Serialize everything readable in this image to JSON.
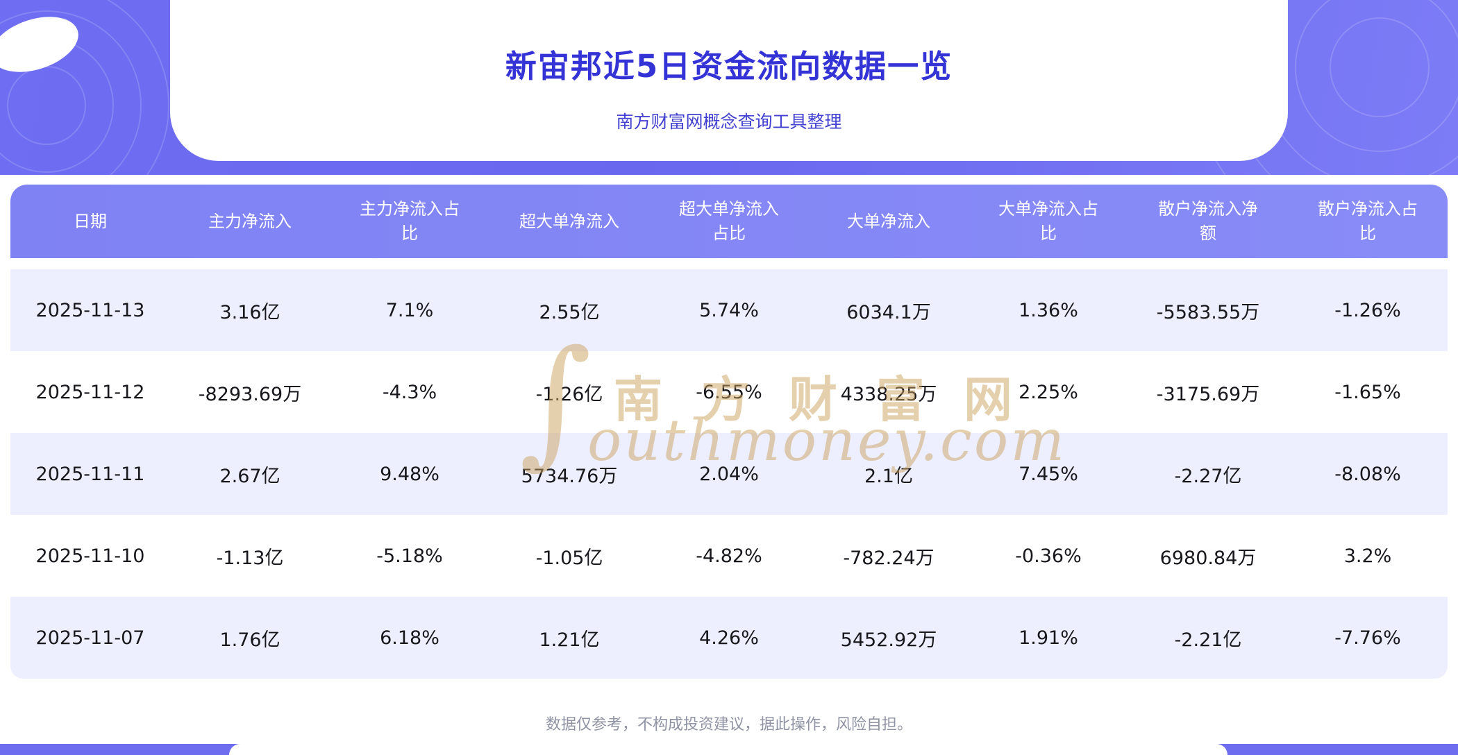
{
  "banner": {
    "title": "新宙邦近5日资金流向数据一览",
    "subtitle": "南方财富网概念查询工具整理"
  },
  "chart_data": {
    "type": "table",
    "title": "新宙邦近5日资金流向数据一览",
    "subtitle": "南方财富网概念查询工具整理",
    "columns": [
      "日期",
      "主力净流入",
      "主力净流入占比",
      "超大单净流入",
      "超大单净流入占比",
      "大单净流入",
      "大单净流入占比",
      "散户净流入净额",
      "散户净流入占比"
    ],
    "rows": [
      [
        "2025-11-13",
        "3.16亿",
        "7.1%",
        "2.55亿",
        "5.74%",
        "6034.1万",
        "1.36%",
        "-5583.55万",
        "-1.26%"
      ],
      [
        "2025-11-12",
        "-8293.69万",
        "-4.3%",
        "-1.26亿",
        "-6.55%",
        "4338.25万",
        "2.25%",
        "-3175.69万",
        "-1.65%"
      ],
      [
        "2025-11-11",
        "2.67亿",
        "9.48%",
        "5734.76万",
        "2.04%",
        "2.1亿",
        "7.45%",
        "-2.27亿",
        "-8.08%"
      ],
      [
        "2025-11-10",
        "-1.13亿",
        "-5.18%",
        "-1.05亿",
        "-4.82%",
        "-782.24万",
        "-0.36%",
        "6980.84万",
        "3.2%"
      ],
      [
        "2025-11-07",
        "1.76亿",
        "6.18%",
        "1.21亿",
        "4.26%",
        "5452.92万",
        "1.91%",
        "-2.21亿",
        "-7.76%"
      ]
    ]
  },
  "watermark": {
    "glyph": "∫",
    "line1": "南方财富网",
    "line2": "outhmoney.com"
  },
  "footer": {
    "disclaimer": "数据仅参考，不构成投资建议，据此操作，风险自担。"
  },
  "colors": {
    "banner_purple": "#6E6DF0",
    "table_header_purple": "#8286F5",
    "row_alt": "#EDEFFE",
    "title_blue": "#3433D6",
    "watermark_gold": "#CBA25E",
    "disclaimer_gray": "#8F93A3"
  }
}
